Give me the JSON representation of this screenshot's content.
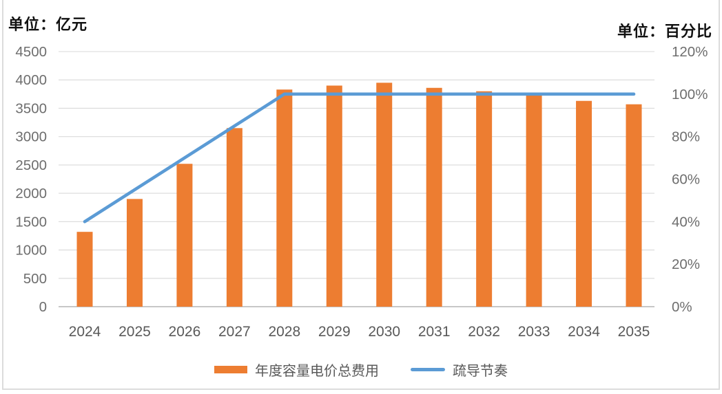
{
  "chart_data": {
    "type": "combo-bar-line",
    "categories": [
      "2024",
      "2025",
      "2026",
      "2027",
      "2028",
      "2029",
      "2030",
      "2031",
      "2032",
      "2033",
      "2034",
      "2035"
    ],
    "series": [
      {
        "name": "年度容量电价总费用",
        "type": "bar",
        "axis": "left",
        "values": [
          1320,
          1900,
          2520,
          3150,
          3830,
          3900,
          3950,
          3860,
          3800,
          3730,
          3630,
          3570
        ]
      },
      {
        "name": "疏导节奏",
        "type": "line",
        "axis": "right",
        "values": [
          40,
          55,
          70,
          85,
          100,
          100,
          100,
          100,
          100,
          100,
          100,
          100
        ]
      }
    ],
    "left_axis": {
      "title": "单位：亿元",
      "min": 0,
      "max": 4500,
      "step": 500,
      "ticks": [
        0,
        500,
        1000,
        1500,
        2000,
        2500,
        3000,
        3500,
        4000,
        4500
      ],
      "tick_labels": [
        "0",
        "500",
        "1000",
        "1500",
        "2000",
        "2500",
        "3000",
        "3500",
        "4000",
        "4500"
      ]
    },
    "right_axis": {
      "title": "单位：百分比",
      "min": 0,
      "max": 120,
      "step": 20,
      "ticks": [
        0,
        20,
        40,
        60,
        80,
        100,
        120
      ],
      "tick_labels": [
        "0%",
        "20%",
        "40%",
        "60%",
        "80%",
        "100%",
        "120%"
      ]
    },
    "grid": "horizontal",
    "legend_position": "bottom",
    "colors": {
      "bar": "#ED7D31",
      "line": "#5B9BD5",
      "gridline": "#D9D9D9",
      "axis_line": "#BFBFBF",
      "left_tick_text": "#6e6e6e",
      "right_tick_text": "#6e6e6e",
      "xlabel_text": "#595959",
      "legend_text": "#595959"
    }
  }
}
